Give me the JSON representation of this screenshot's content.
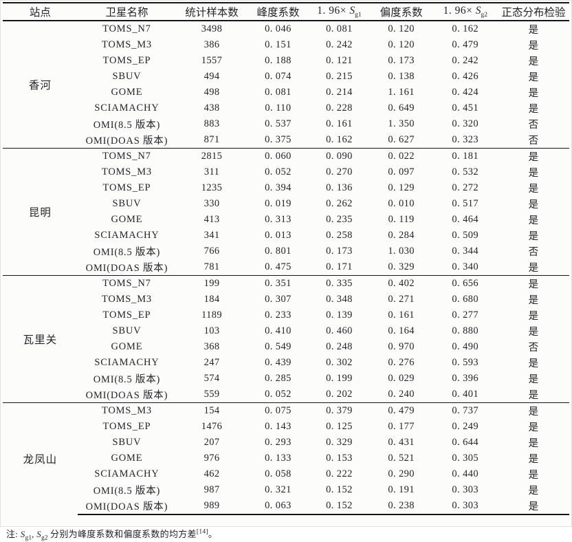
{
  "table": {
    "columns": [
      {
        "label": "站点"
      },
      {
        "label": "卫星名称"
      },
      {
        "label": "统计样本数"
      },
      {
        "label": "峰度系数"
      },
      {
        "prefix": "1. 96× ",
        "base": "S",
        "sub": "g1"
      },
      {
        "label": "偏度系数"
      },
      {
        "prefix": "1. 96× ",
        "base": "S",
        "sub": "g2"
      },
      {
        "label": "正态分布检验"
      }
    ],
    "groups": [
      {
        "station": "香河",
        "rows": [
          [
            "TOMS_N7",
            "3498",
            "0. 046",
            "0. 081",
            "0. 120",
            "0. 162",
            "是"
          ],
          [
            "TOMS_M3",
            "386",
            "0. 151",
            "0. 242",
            "0. 120",
            "0. 479",
            "是"
          ],
          [
            "TOMS_EP",
            "1557",
            "0. 188",
            "0. 121",
            "0. 173",
            "0. 242",
            "是"
          ],
          [
            "SBUV",
            "494",
            "0. 074",
            "0. 215",
            "0. 138",
            "0. 426",
            "是"
          ],
          [
            "GOME",
            "498",
            "0. 081",
            "0. 214",
            "1. 161",
            "0. 424",
            "是"
          ],
          [
            "SCIAMACHY",
            "438",
            "0. 110",
            "0. 228",
            "0. 649",
            "0. 451",
            "是"
          ],
          [
            "OMI(8.5 版本)",
            "883",
            "0. 537",
            "0. 161",
            "1. 350",
            "0. 320",
            "否"
          ],
          [
            "OMI(DOAS 版本)",
            "871",
            "0. 375",
            "0. 162",
            "0. 627",
            "0. 323",
            "否"
          ]
        ]
      },
      {
        "station": "昆明",
        "rows": [
          [
            "TOMS_N7",
            "2815",
            "0. 060",
            "0. 090",
            "0. 022",
            "0. 181",
            "是"
          ],
          [
            "TOMS_M3",
            "311",
            "0. 052",
            "0. 270",
            "0. 097",
            "0. 532",
            "是"
          ],
          [
            "TOMS_EP",
            "1235",
            "0. 394",
            "0. 136",
            "0. 129",
            "0. 272",
            "是"
          ],
          [
            "SBUV",
            "330",
            "0. 019",
            "0. 262",
            "0. 010",
            "0. 517",
            "是"
          ],
          [
            "GOME",
            "413",
            "0. 313",
            "0. 235",
            "0. 119",
            "0. 464",
            "是"
          ],
          [
            "SCIAMACHY",
            "341",
            "0. 013",
            "0. 258",
            "0. 284",
            "0. 509",
            "是"
          ],
          [
            "OMI(8.5 版本)",
            "766",
            "0. 801",
            "0. 173",
            "1. 030",
            "0. 344",
            "否"
          ],
          [
            "OMI(DOAS 版本)",
            "781",
            "0. 475",
            "0. 171",
            "0. 329",
            "0. 340",
            "是"
          ]
        ]
      },
      {
        "station": "瓦里关",
        "rows": [
          [
            "TOMS_N7",
            "199",
            "0. 351",
            "0. 335",
            "0. 402",
            "0. 656",
            "是"
          ],
          [
            "TOMS_M3",
            "184",
            "0. 307",
            "0. 348",
            "0. 271",
            "0. 680",
            "是"
          ],
          [
            "TOMS_EP",
            "1189",
            "0. 233",
            "0. 139",
            "0. 161",
            "0. 277",
            "是"
          ],
          [
            "SBUV",
            "103",
            "0. 410",
            "0. 460",
            "0. 164",
            "0. 880",
            "是"
          ],
          [
            "GOME",
            "368",
            "0. 549",
            "0. 248",
            "0. 970",
            "0. 490",
            "否"
          ],
          [
            "SCIAMACHY",
            "247",
            "0. 439",
            "0. 302",
            "0. 276",
            "0. 593",
            "是"
          ],
          [
            "OMI(8.5 版本)",
            "574",
            "0. 285",
            "0. 199",
            "0. 029",
            "0. 396",
            "是"
          ],
          [
            "OMI(DOAS 版本)",
            "559",
            "0. 052",
            "0. 202",
            "0. 240",
            "0. 401",
            "是"
          ]
        ]
      },
      {
        "station": "龙凤山",
        "rows": [
          [
            "TOMS_M3",
            "154",
            "0. 075",
            "0. 379",
            "0. 479",
            "0. 737",
            "是"
          ],
          [
            "TOMS_EP",
            "1476",
            "0. 143",
            "0. 125",
            "0. 177",
            "0. 249",
            "是"
          ],
          [
            "SBUV",
            "207",
            "0. 293",
            "0. 329",
            "0. 431",
            "0. 644",
            "是"
          ],
          [
            "GOME",
            "976",
            "0. 133",
            "0. 153",
            "0. 521",
            "0. 305",
            "是"
          ],
          [
            "SCIAMACHY",
            "462",
            "0. 058",
            "0. 222",
            "0. 290",
            "0. 440",
            "是"
          ],
          [
            "OMI(8.5 版本)",
            "987",
            "0. 321",
            "0. 152",
            "0. 191",
            "0. 303",
            "是"
          ],
          [
            "OMI(DOAS 版本)",
            "989",
            "0. 063",
            "0. 152",
            "0. 238",
            "0. 303",
            "是"
          ]
        ]
      }
    ]
  },
  "note": {
    "prefix": "注: ",
    "s1_base": "S",
    "s1_sub": "g1",
    "sep1": ", ",
    "s2_base": "S",
    "s2_sub": "g2",
    "body": " 分别为峰度系数和偏度系数的均方差",
    "citation": "[14]",
    "end": "。"
  },
  "colors": {
    "text": "#23232b",
    "rule": "#13131a",
    "background": "#fcfcfa"
  }
}
